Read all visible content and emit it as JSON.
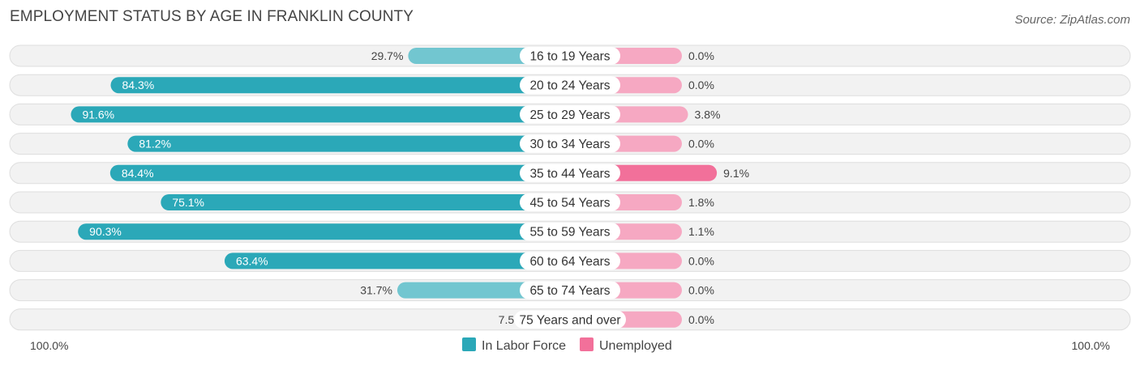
{
  "chart_data": {
    "type": "bar",
    "title": "EMPLOYMENT STATUS BY AGE IN FRANKLIN COUNTY",
    "source": "Source: ZipAtlas.com",
    "categories": [
      "16 to 19 Years",
      "20 to 24 Years",
      "25 to 29 Years",
      "30 to 34 Years",
      "35 to 44 Years",
      "45 to 54 Years",
      "55 to 59 Years",
      "60 to 64 Years",
      "65 to 74 Years",
      "75 Years and over"
    ],
    "series": [
      {
        "name": "In Labor Force",
        "values": [
          29.7,
          84.3,
          91.6,
          81.2,
          84.4,
          75.1,
          90.3,
          63.4,
          31.7,
          7.5
        ],
        "labels": [
          "29.7%",
          "84.3%",
          "91.6%",
          "81.2%",
          "84.4%",
          "75.1%",
          "90.3%",
          "63.4%",
          "31.7%",
          "7.5%"
        ]
      },
      {
        "name": "Unemployed",
        "values": [
          0.0,
          0.0,
          3.8,
          0.0,
          9.1,
          1.8,
          1.1,
          0.0,
          0.0,
          0.0
        ],
        "labels": [
          "0.0%",
          "0.0%",
          "3.8%",
          "0.0%",
          "9.1%",
          "1.8%",
          "1.1%",
          "0.0%",
          "0.0%",
          "0.0%"
        ]
      }
    ],
    "axis_left_label": "100.0%",
    "axis_right_label": "100.0%",
    "xlim": [
      -100,
      100
    ],
    "legend_position": "bottom-center"
  },
  "colors": {
    "labor_dark": "#2ba8b8",
    "labor_light": "#72c6d0",
    "unemp_dark": "#f2709a",
    "unemp_light": "#f6a8c2",
    "row_bg": "#f2f2f2",
    "row_border": "#dedede"
  }
}
